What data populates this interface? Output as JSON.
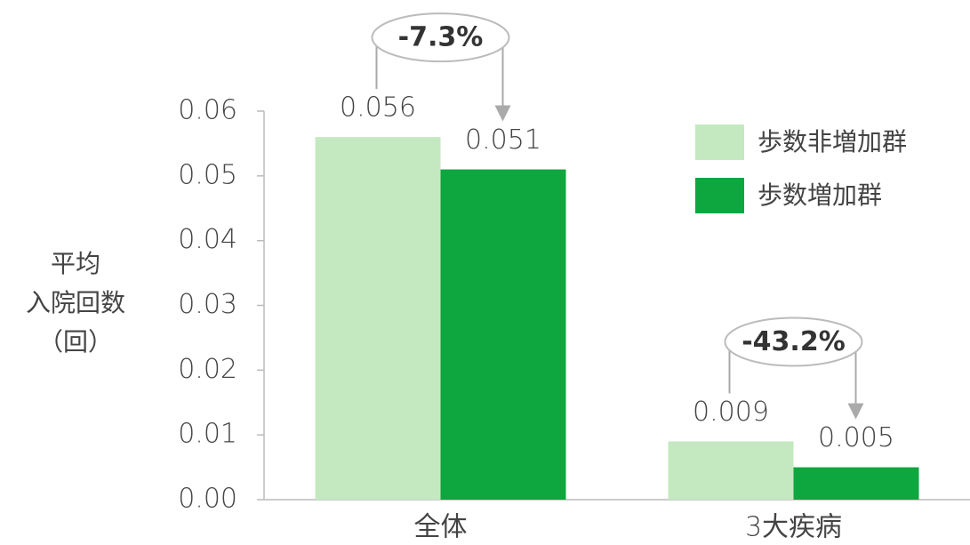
{
  "chart_data": {
    "type": "bar",
    "ylabel": [
      "平均",
      "入院回数",
      "（回）"
    ],
    "categories": [
      "全体",
      "3大疾病"
    ],
    "series": [
      {
        "name": "歩数非増加群",
        "color": "#c4e9c0",
        "values": [
          0.056,
          0.009
        ]
      },
      {
        "name": "歩数増加群",
        "color": "#0ea63f",
        "values": [
          0.051,
          0.005
        ]
      }
    ],
    "annotations": [
      "-7.3%",
      "-43.2%"
    ],
    "ylim": [
      0,
      0.06
    ],
    "yticks": [
      {
        "value": 0,
        "label": "0.00"
      },
      0.01,
      0.02,
      0.03,
      0.04,
      0.05,
      0.06
    ],
    "legend": "upper right"
  }
}
